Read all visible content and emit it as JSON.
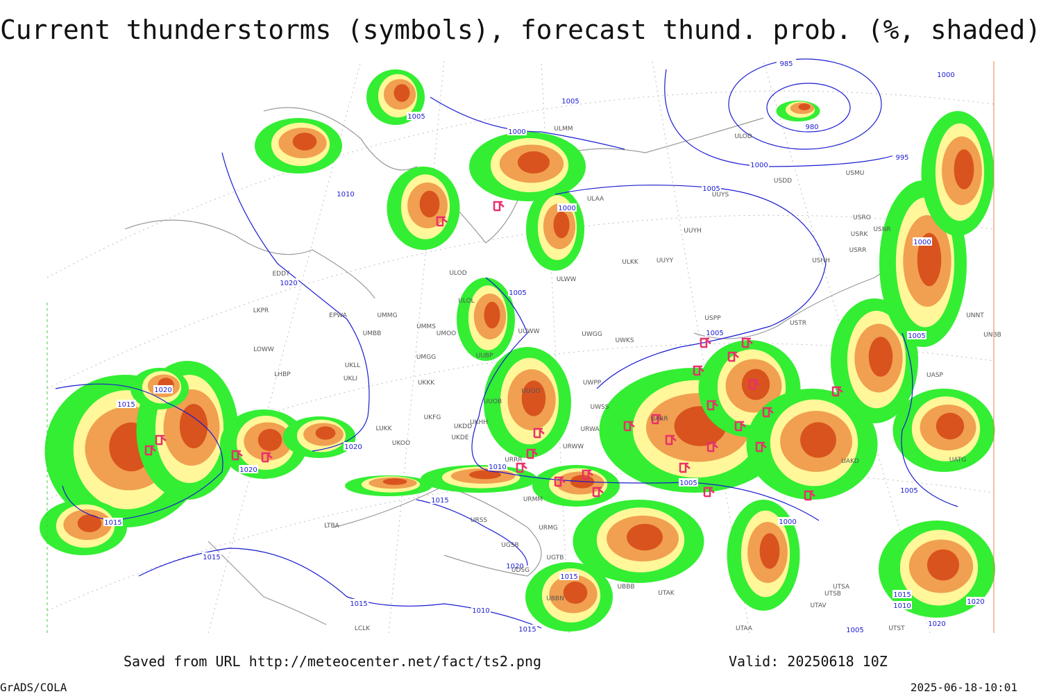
{
  "title": "Current thunderstorms (symbols), forecast thund. prob. (%, shaded)",
  "footer": {
    "source": "Saved from URL http://meteocenter.net/fact/ts2.png",
    "valid": "Valid: 20250618 10Z",
    "software": "GrADS/COLA",
    "timestamp": "2025-06-18-10:01"
  },
  "isobar_labels": [
    1005,
    1005,
    985,
    980,
    1000,
    995,
    1000,
    1010,
    1000,
    1000,
    1005,
    1000,
    1020,
    1005,
    1005,
    1005,
    1020,
    1015,
    1020,
    1020,
    1010,
    1015,
    1005,
    1005,
    1015,
    1015,
    1000,
    1020,
    1015,
    1015,
    1010,
    1015,
    1010,
    1020,
    1020,
    1015,
    1005
  ],
  "stations": [
    "ULMM",
    "ULOD",
    "USDD",
    "USMU",
    "ULAA",
    "UUYS",
    "USRO",
    "USRK",
    "USNR",
    "USRR",
    "UUYH",
    "ULKK",
    "UUYY",
    "USHH",
    "ULOD",
    "ULWW",
    "EDDT",
    "EPWA",
    "UMMG",
    "LKPR",
    "UMBB",
    "UMMS",
    "UMOO",
    "ULOL",
    "UUWW",
    "UWGG",
    "UWKS",
    "USPP",
    "USTR",
    "UNNT",
    "UNBB",
    "LOWW",
    "LHBP",
    "UKLL",
    "UKLI",
    "UMGG",
    "UUBP",
    "UKKK",
    "UWPP",
    "UUOO",
    "UWSS",
    "UUOB",
    "UKHH",
    "UKDD",
    "UKDE",
    "LUKK",
    "UKOO",
    "UKFG",
    "URWW",
    "URWA",
    "UARR",
    "UASP",
    "URRR",
    "URMM",
    "URSS",
    "URMG",
    "UGSB",
    "UGTB",
    "LTBA",
    "UDSG",
    "UBBB",
    "UTAK",
    "UTSA",
    "UTSB",
    "UTAV",
    "UTST",
    "UTAA",
    "LCLK",
    "UBBN",
    "UATG",
    "UAKD"
  ]
}
